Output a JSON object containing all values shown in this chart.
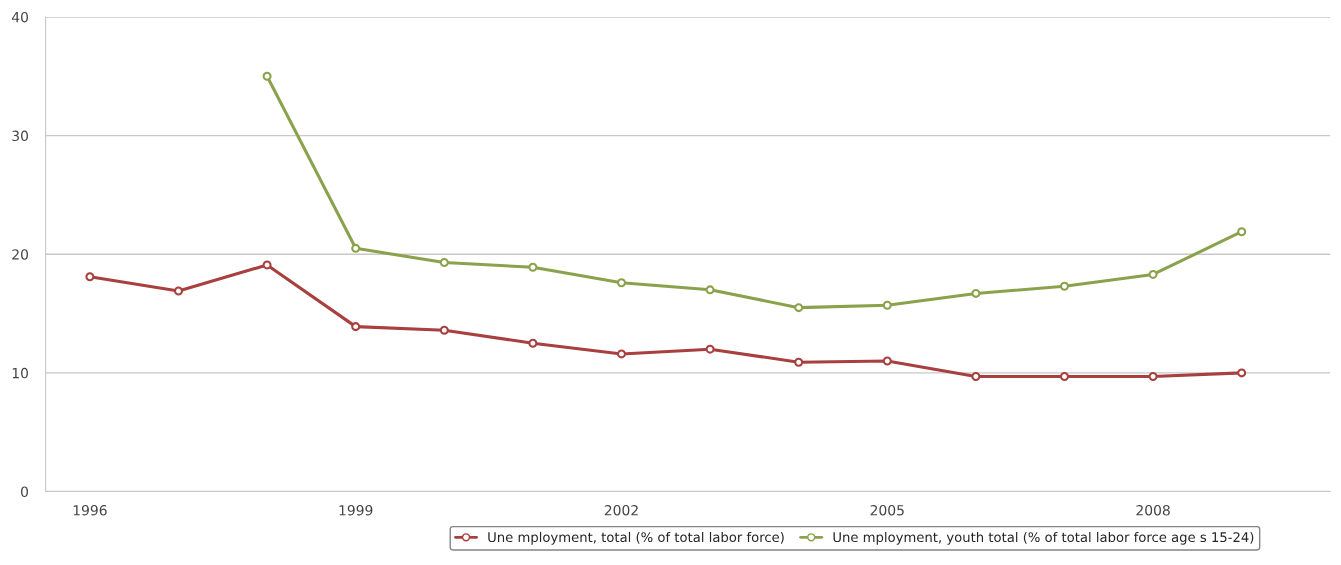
{
  "chart_data": {
    "type": "line",
    "x": [
      1996,
      1997,
      1998,
      1999,
      2000,
      2001,
      2002,
      2003,
      2004,
      2005,
      2006,
      2007,
      2008,
      2009
    ],
    "series": [
      {
        "name": "Une mployment, total (% of total labor force)",
        "color": "#a8403f",
        "values": [
          18.1,
          16.9,
          19.1,
          13.9,
          13.6,
          12.5,
          11.6,
          12.0,
          10.9,
          11.0,
          9.7,
          9.7,
          9.7,
          10.0
        ]
      },
      {
        "name": "Une mployment, youth total (% of total labor force age s 15-24)",
        "color": "#8ba24c",
        "values": [
          null,
          null,
          35.0,
          20.5,
          19.3,
          18.9,
          17.6,
          17.0,
          15.5,
          15.7,
          16.7,
          17.3,
          18.3,
          21.9
        ]
      }
    ],
    "xlim": [
      1995.5,
      2010
    ],
    "xticks": [
      1996,
      1999,
      2002,
      2005,
      2008
    ],
    "ylim": [
      0,
      40
    ],
    "yticks": [
      0,
      10,
      20,
      30,
      40
    ],
    "grid": "y",
    "legend": "bottom",
    "marker": "circle",
    "line_style": "solid"
  }
}
